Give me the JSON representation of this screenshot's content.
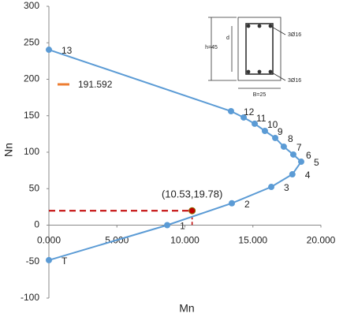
{
  "chart_data": {
    "type": "scatter",
    "x_label": "Mn",
    "y_label": "Nn",
    "xlim": [
      0,
      20
    ],
    "ylim": [
      -100,
      300
    ],
    "xticks": [
      {
        "value": 0,
        "label": "0.000"
      },
      {
        "value": 5,
        "label": "5.000"
      },
      {
        "value": 10,
        "label": "10.000"
      },
      {
        "value": 15,
        "label": "15.000"
      },
      {
        "value": 20,
        "label": "20.000"
      }
    ],
    "yticks": [
      -100,
      -50,
      0,
      50,
      100,
      150,
      200,
      250,
      300
    ],
    "series": [
      {
        "color": "#5b9bd5",
        "point_labels": [
          "T",
          "1",
          "2",
          "3",
          "4",
          "5",
          "6",
          "7",
          "8",
          "9",
          "10",
          "11",
          "12",
          "13"
        ],
        "x": [
          0,
          8.7,
          13.45,
          16.35,
          17.9,
          18.55,
          17.97,
          17.27,
          16.64,
          15.88,
          15.13,
          14.32,
          13.39,
          0
        ],
        "values": [
          -48,
          0,
          30,
          52.4,
          69.7,
          87,
          96.8,
          107.6,
          119.5,
          129.2,
          139,
          147.6,
          156.2,
          240.5
        ]
      },
      {
        "name": "191.592",
        "color": "#ed7d31",
        "x": [],
        "values": []
      }
    ],
    "annotation": {
      "text": "(10.53,19.78)",
      "x": 10.53,
      "y": 19.78,
      "color": "#c00000"
    },
    "inset": {
      "h": "h=45",
      "d": "d",
      "b": "B=25",
      "top_bars": "3Ø16",
      "bottom_bars": "3Ø16"
    }
  }
}
